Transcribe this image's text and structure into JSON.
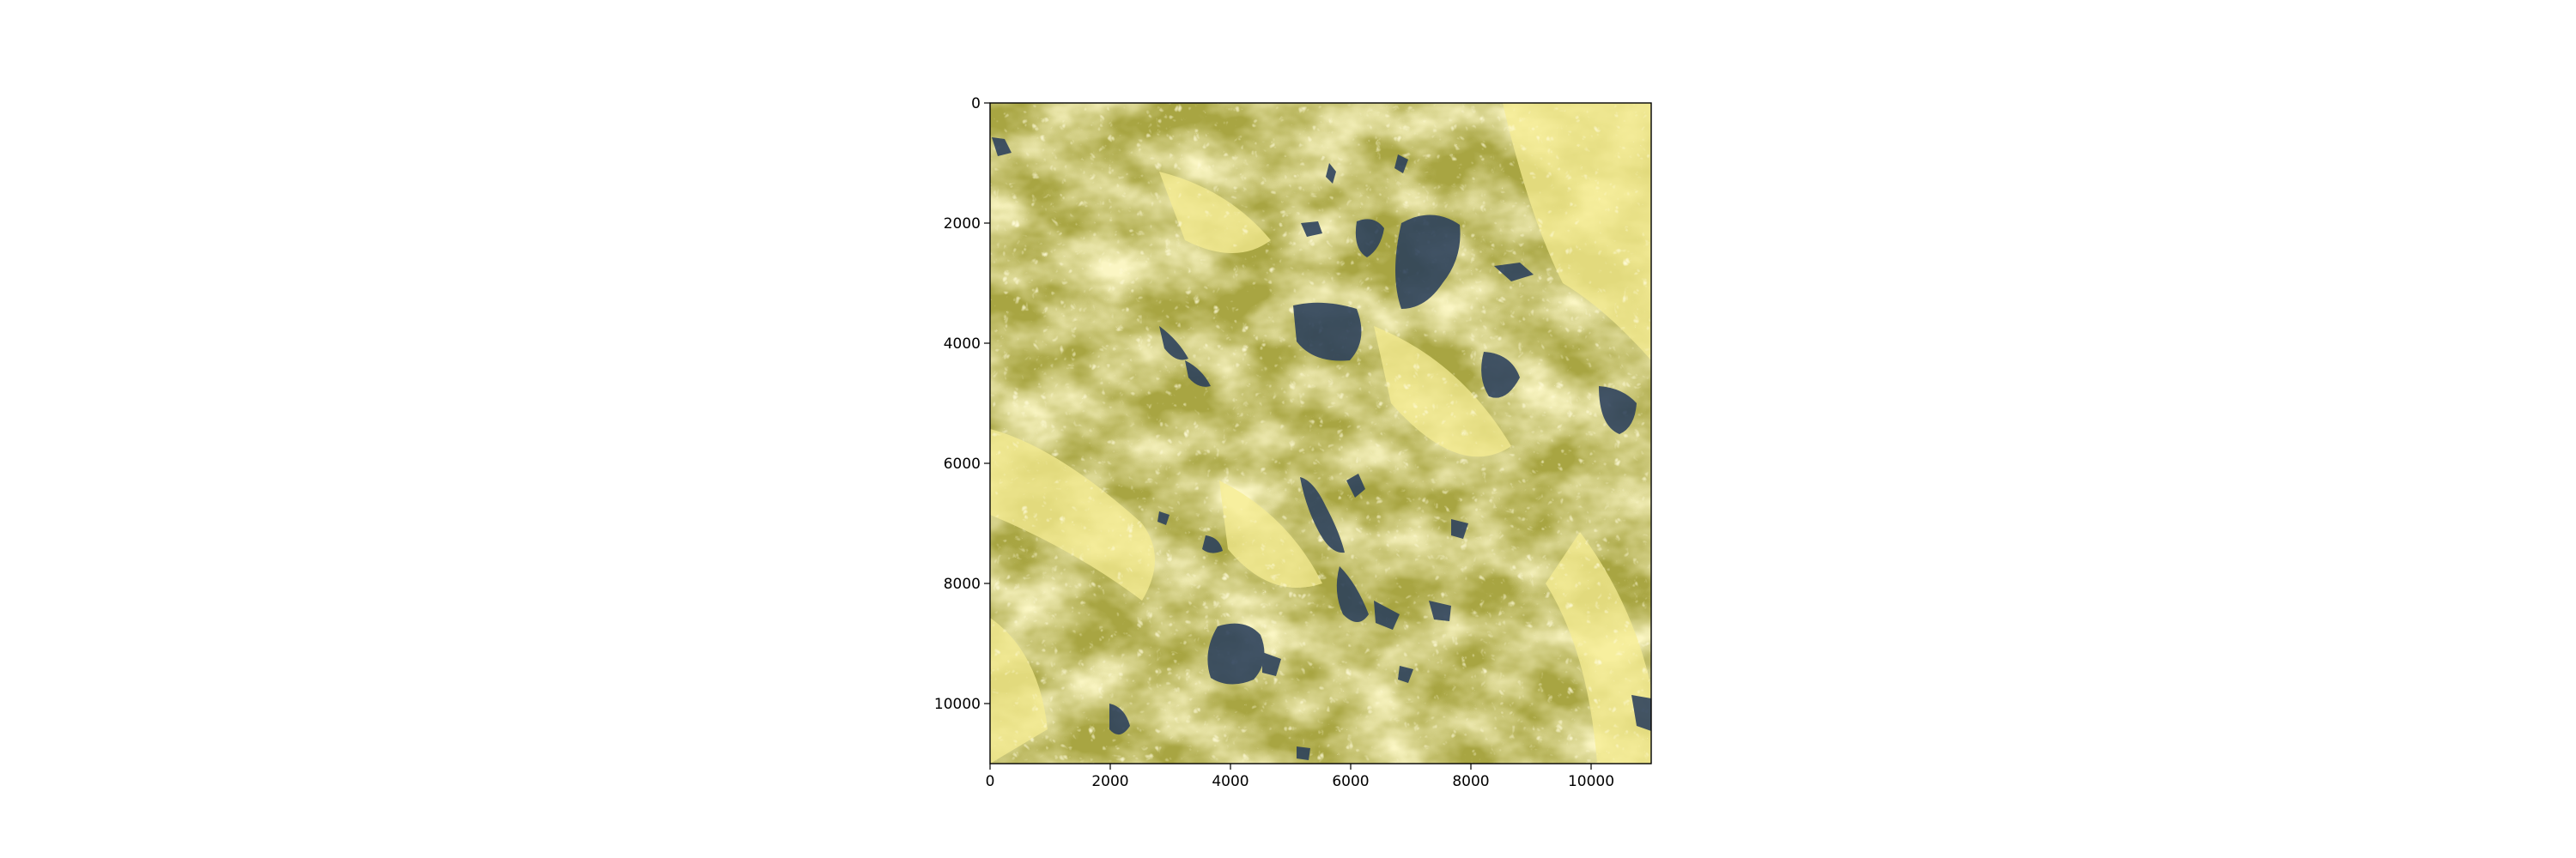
{
  "figure": {
    "title": "",
    "xlabel": "",
    "ylabel": ""
  },
  "image": {
    "kind": "satellite cloud-cover image",
    "colormap": "cividis",
    "colors": {
      "cloud": "#f6ec8c",
      "ground": "#a8a542",
      "clear_shadow": "#2a3f5c"
    }
  },
  "axes": {
    "x_ticks": [
      "0",
      "2000",
      "4000",
      "6000",
      "8000",
      "10000"
    ],
    "y_ticks": [
      "0",
      "2000",
      "4000",
      "6000",
      "8000",
      "10000"
    ],
    "xlim": [
      0,
      11000
    ],
    "ylim": [
      11000,
      0
    ]
  }
}
